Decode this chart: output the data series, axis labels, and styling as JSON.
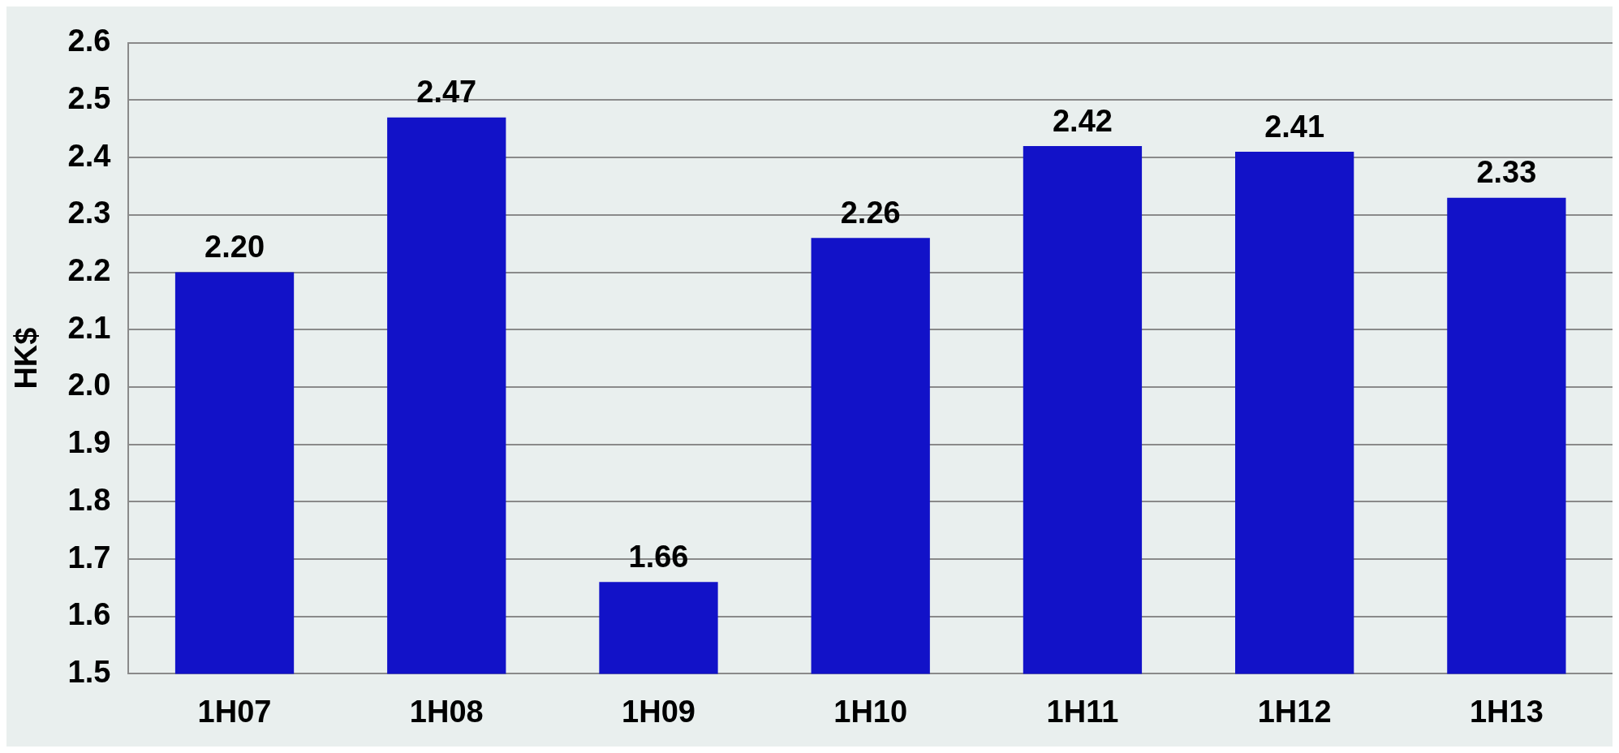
{
  "chart_data": {
    "type": "bar",
    "ylabel": "HK$",
    "categories": [
      "1H07",
      "1H08",
      "1H09",
      "1H10",
      "1H11",
      "1H12",
      "1H13"
    ],
    "values": [
      2.2,
      2.47,
      1.66,
      2.26,
      2.42,
      2.41,
      2.33
    ],
    "value_labels": [
      "2.20",
      "2.47",
      "1.66",
      "2.26",
      "2.42",
      "2.41",
      "2.33"
    ],
    "color": "#1212c8",
    "ylim": [
      1.5,
      2.6
    ],
    "yticks": [
      1.5,
      1.6,
      1.7,
      1.8,
      1.9,
      {
        "value": 2,
        "label": "2.0"
      },
      2.1,
      2.2,
      2.3,
      2.4,
      2.5,
      2.6
    ],
    "grid": "y",
    "legend": false
  }
}
